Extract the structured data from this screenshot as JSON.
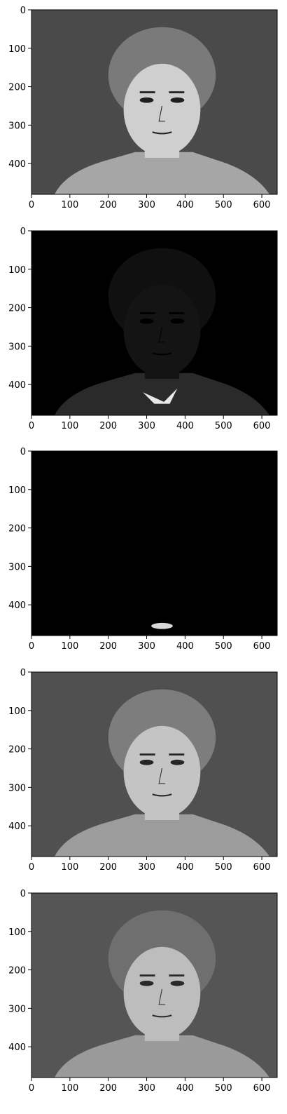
{
  "chart_data": [
    {
      "type": "heatmap",
      "content": "grayscale face image",
      "xlim": [
        0,
        640
      ],
      "ylim": [
        480,
        0
      ],
      "xticks": [
        "0",
        "100",
        "200",
        "300",
        "400",
        "500",
        "600"
      ],
      "yticks": [
        "0",
        "100",
        "200",
        "300",
        "400"
      ],
      "colors": {
        "background": "#4a4a4a",
        "face": "#cfcfcf",
        "hair": "#7a7a7a",
        "features": "#1e1e1e",
        "clothing": "#a6a6a6"
      }
    },
    {
      "type": "heatmap",
      "content": "mostly black residual image with faint face outline",
      "xlim": [
        0,
        640
      ],
      "ylim": [
        480,
        0
      ],
      "xticks": [
        "0",
        "100",
        "200",
        "300",
        "400",
        "500",
        "600"
      ],
      "yticks": [
        "0",
        "100",
        "200",
        "300",
        "400"
      ],
      "colors": {
        "background": "#000000",
        "face": "#141414",
        "hair": "#101010",
        "features": "#000000",
        "clothing": "#2a2a2a",
        "highlight": "#e8e8e8"
      }
    },
    {
      "type": "heatmap",
      "content": "almost fully black image with small bright patch near the chin",
      "xlim": [
        0,
        640
      ],
      "ylim": [
        480,
        0
      ],
      "xticks": [
        "0",
        "100",
        "200",
        "300",
        "400",
        "500",
        "600"
      ],
      "yticks": [
        "0",
        "100",
        "200",
        "300",
        "400"
      ],
      "colors": {
        "background": "#000000",
        "highlight": "#d8d8d8"
      }
    },
    {
      "type": "heatmap",
      "content": "grayscale face image",
      "xlim": [
        0,
        640
      ],
      "ylim": [
        480,
        0
      ],
      "xticks": [
        "0",
        "100",
        "200",
        "300",
        "400",
        "500",
        "600"
      ],
      "yticks": [
        "0",
        "100",
        "200",
        "300",
        "400"
      ],
      "colors": {
        "background": "#505050",
        "face": "#c4c4c4",
        "hair": "#7d7d7d",
        "features": "#262626",
        "clothing": "#9c9c9c"
      }
    },
    {
      "type": "heatmap",
      "content": "grayscale face image",
      "xlim": [
        0,
        640
      ],
      "ylim": [
        480,
        0
      ],
      "xticks": [
        "0",
        "100",
        "200",
        "300",
        "400",
        "500",
        "600"
      ],
      "yticks": [
        "0",
        "100",
        "200",
        "300",
        "400"
      ],
      "colors": {
        "background": "#555555",
        "face": "#bdbdbd",
        "hair": "#6f6f6f",
        "features": "#2a2a2a",
        "clothing": "#9a9a9a"
      }
    }
  ]
}
